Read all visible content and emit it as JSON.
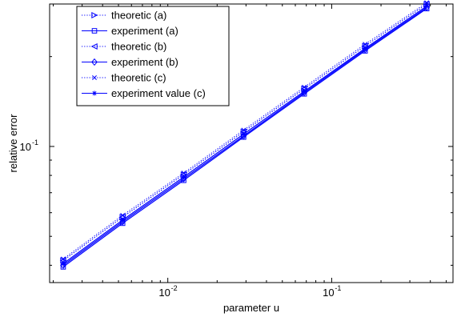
{
  "chart_data": {
    "type": "line",
    "xlabel": "parameter u",
    "ylabel": "relative error",
    "xscale": "log",
    "yscale": "log",
    "xlim": [
      0.0019,
      0.55
    ],
    "ylim": [
      0.035,
      0.3
    ],
    "x_ticks": [
      {
        "value": 0.01,
        "base": "10",
        "exp": "-2"
      },
      {
        "value": 0.1,
        "base": "10",
        "exp": "-1"
      }
    ],
    "y_ticks": [
      {
        "value": 0.1,
        "base": "10",
        "exp": "-1"
      }
    ],
    "grid": false,
    "legend_position": "top-left",
    "color": "#0000ff",
    "x": [
      0.0023,
      0.0053,
      0.0125,
      0.029,
      0.068,
      0.16,
      0.38
    ],
    "series": [
      {
        "name": "theoretic (a)",
        "line": "dotted",
        "marker": "triangle-right",
        "values": [
          0.0415,
          0.058,
          0.0805,
          0.112,
          0.156,
          0.217,
          0.2995
        ]
      },
      {
        "name": "experiment (a)",
        "line": "solid",
        "marker": "square",
        "values": [
          0.0395,
          0.0553,
          0.077,
          0.1075,
          0.15,
          0.209,
          0.2895
        ]
      },
      {
        "name": "theoretic (b)",
        "line": "dotted",
        "marker": "triangle-left",
        "values": [
          0.0415,
          0.058,
          0.0805,
          0.112,
          0.156,
          0.217,
          0.2995
        ]
      },
      {
        "name": "experiment (b)",
        "line": "solid",
        "marker": "diamond",
        "values": [
          0.04,
          0.056,
          0.078,
          0.1085,
          0.1515,
          0.211,
          0.292
        ]
      },
      {
        "name": "theoretic (c)",
        "line": "dotted",
        "marker": "x",
        "values": [
          0.042,
          0.0588,
          0.0815,
          0.1135,
          0.158,
          0.22,
          0.303
        ]
      },
      {
        "name": "experiment value (c)",
        "line": "solid",
        "marker": "asterisk",
        "values": [
          0.0405,
          0.0567,
          0.079,
          0.11,
          0.153,
          0.213,
          0.295
        ]
      }
    ]
  }
}
